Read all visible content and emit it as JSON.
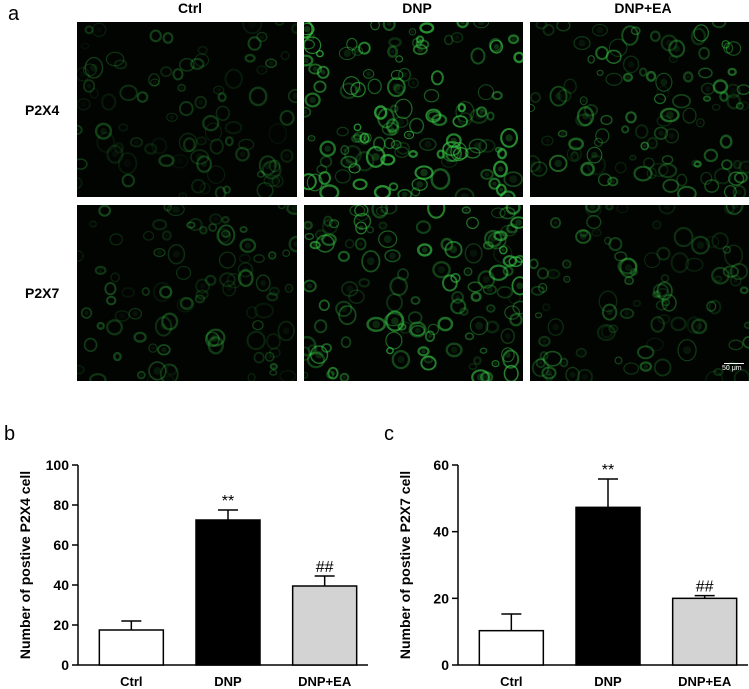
{
  "figure": {
    "panel_a_letter": "a",
    "panel_b_letter": "b",
    "panel_c_letter": "c",
    "columns": [
      "Ctrl",
      "DNP",
      "DNP+EA"
    ],
    "rows": [
      "P2X4",
      "P2X7"
    ],
    "scale_bar_label": "50 μm",
    "fluorescence_color": "#3bd14a",
    "intensity": {
      "P2X4": [
        0.45,
        1.0,
        0.7
      ],
      "P2X7": [
        0.5,
        0.9,
        0.55
      ]
    }
  },
  "chart_data": [
    {
      "type": "bar",
      "panel": "b",
      "categories": [
        "Ctrl",
        "DNP",
        "DNP+EA"
      ],
      "values": [
        17.5,
        72.5,
        39.5
      ],
      "errors": [
        4.5,
        5,
        5
      ],
      "bar_colors": [
        "#ffffff",
        "#000000",
        "#d3d3d3"
      ],
      "significance": [
        "",
        "**",
        "##"
      ],
      "title": "",
      "xlabel": "",
      "ylabel": "Number of postive P2X4 cell",
      "ylim": [
        0,
        100
      ],
      "yticks": [
        0,
        20,
        40,
        60,
        80,
        100
      ]
    },
    {
      "type": "bar",
      "panel": "c",
      "categories": [
        "Ctrl",
        "DNP",
        "DNP+EA"
      ],
      "values": [
        10.3,
        47.3,
        20
      ],
      "errors": [
        5,
        8.5,
        0.8
      ],
      "bar_colors": [
        "#ffffff",
        "#000000",
        "#d3d3d3"
      ],
      "significance": [
        "",
        "**",
        "##"
      ],
      "title": "",
      "xlabel": "",
      "ylabel": "Number of postive P2X7 cell",
      "ylim": [
        0,
        60
      ],
      "yticks": [
        0,
        20,
        40,
        60
      ]
    }
  ]
}
